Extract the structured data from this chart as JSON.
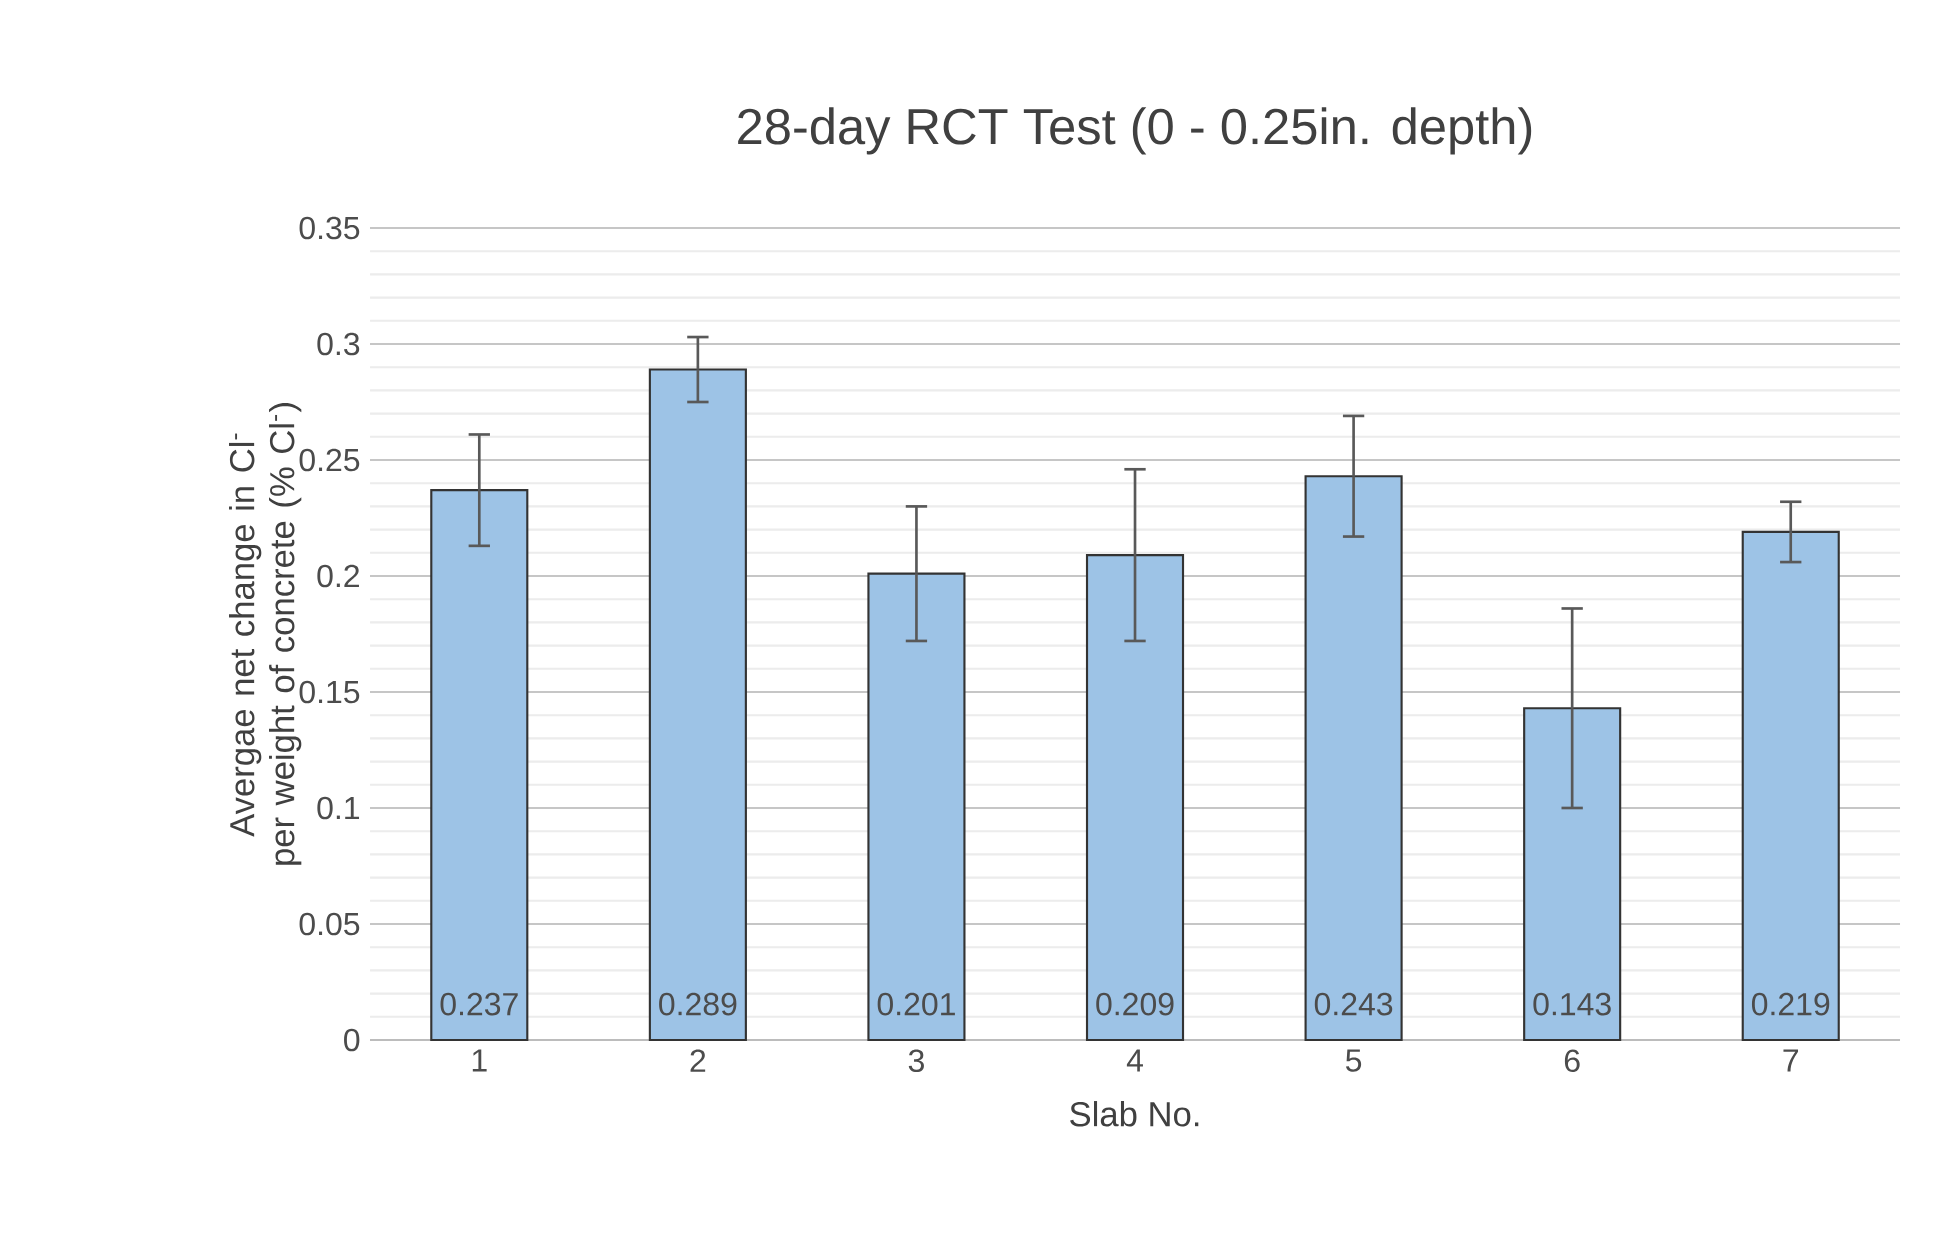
{
  "chart_data": {
    "type": "bar",
    "title": "28-day RCT Test (0  - 0.25in. depth)",
    "xlabel": "Slab No.",
    "ylabel": "Avergae net change in Cl$^{-}$ per weight of concrete (% Cl$^{-}$)",
    "categories": [
      "1",
      "2",
      "3",
      "4",
      "5",
      "6",
      "7"
    ],
    "values": [
      0.237,
      0.289,
      0.201,
      0.209,
      0.243,
      0.143,
      0.219
    ],
    "errors": [
      0.024,
      0.014,
      0.029,
      0.037,
      0.026,
      0.043,
      0.013
    ],
    "color": "#9dc3e6",
    "ylim": [
      0,
      0.35
    ],
    "yticks": [
      0,
      0.05,
      0.1,
      0.15,
      0.2,
      0.25,
      0.3,
      0.35
    ],
    "grid": "y",
    "data_labels": true
  }
}
